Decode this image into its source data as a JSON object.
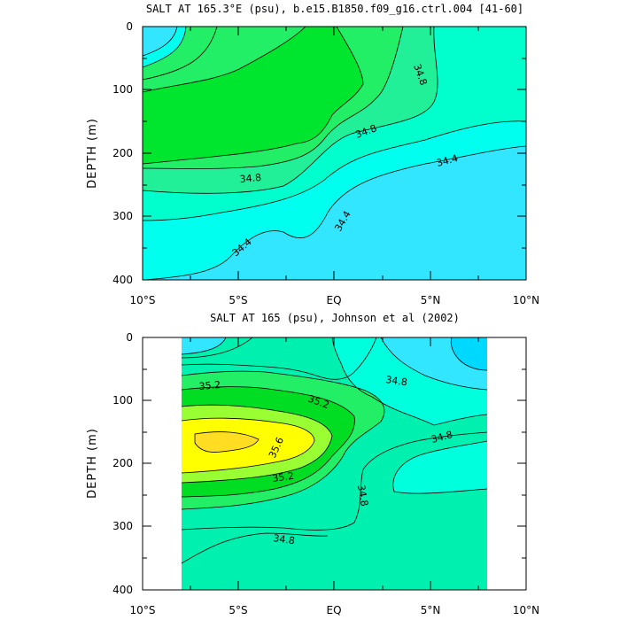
{
  "chart_data": [
    {
      "type": "contour",
      "title": "SALT AT 165.3°E (psu), b.e15.B1850.f09_g16.ctrl.004 [41-60]",
      "ylabel": "DEPTH (m)",
      "xlabel": "",
      "x_ticks": [
        "10°S",
        "5°S",
        "EQ",
        "5°N",
        "10°N"
      ],
      "y_ticks": [
        "0",
        "100",
        "200",
        "300",
        "400"
      ],
      "xlim": [
        -10,
        10
      ],
      "ylim": [
        0,
        400
      ],
      "y_inverted": true,
      "colors": {
        "below_34.4": "#33e6ff",
        "34.4_34.6": "#00ffee",
        "34.6_34.8": "#00ffcc",
        "34.8_35.0": "#22f099",
        "35.0_35.2": "#22ee66",
        "35.2_35.4": "#00e52e"
      },
      "contour_labels": [
        {
          "text": "34.8",
          "x": 4,
          "y": 60
        },
        {
          "text": "34.8",
          "x": 1.8,
          "y": 165
        },
        {
          "text": "34.8",
          "x": -5.6,
          "y": 238
        },
        {
          "text": "34.4",
          "x": 5.2,
          "y": 208
        },
        {
          "text": "34.4",
          "x": 0.7,
          "y": 297
        },
        {
          "text": "34.4",
          "x": -5.9,
          "y": 360
        }
      ]
    },
    {
      "type": "contour",
      "title": "SALT AT 165 (psu), Johnson et al (2002)",
      "ylabel": "DEPTH (m)",
      "xlabel": "",
      "x_ticks": [
        "10°S",
        "5°S",
        "EQ",
        "5°N",
        "10°N"
      ],
      "y_ticks": [
        "0",
        "100",
        "200",
        "300",
        "400"
      ],
      "xlim": [
        -10,
        10
      ],
      "ylim": [
        0,
        400
      ],
      "data_x_range": [
        -8,
        8
      ],
      "y_inverted": true,
      "colors": {
        "below_34.4": "#00d9ff",
        "34.4_34.6": "#33e6ff",
        "34.6_34.8": "#00ffdd",
        "34.8_35.0": "#00f0b0",
        "35.0_35.2": "#22ee66",
        "35.2_35.4": "#00dd22",
        "35.4_35.6": "#99ff33",
        "35.6_35.8": "#ffff00",
        "above_35.8": "#ffdd22"
      },
      "contour_labels": [
        {
          "text": "35.2",
          "x": -6.8,
          "y": 80
        },
        {
          "text": "35.2",
          "x": -1.2,
          "y": 104
        },
        {
          "text": "35.6",
          "x": -2.8,
          "y": 180
        },
        {
          "text": "35.2",
          "x": -2.5,
          "y": 222
        },
        {
          "text": "34.8",
          "x": 3.3,
          "y": 68
        },
        {
          "text": "34.8",
          "x": 5.7,
          "y": 157
        },
        {
          "text": "34.8",
          "x": 1.6,
          "y": 252
        },
        {
          "text": "34.8",
          "x": -3.0,
          "y": 318
        }
      ]
    }
  ]
}
